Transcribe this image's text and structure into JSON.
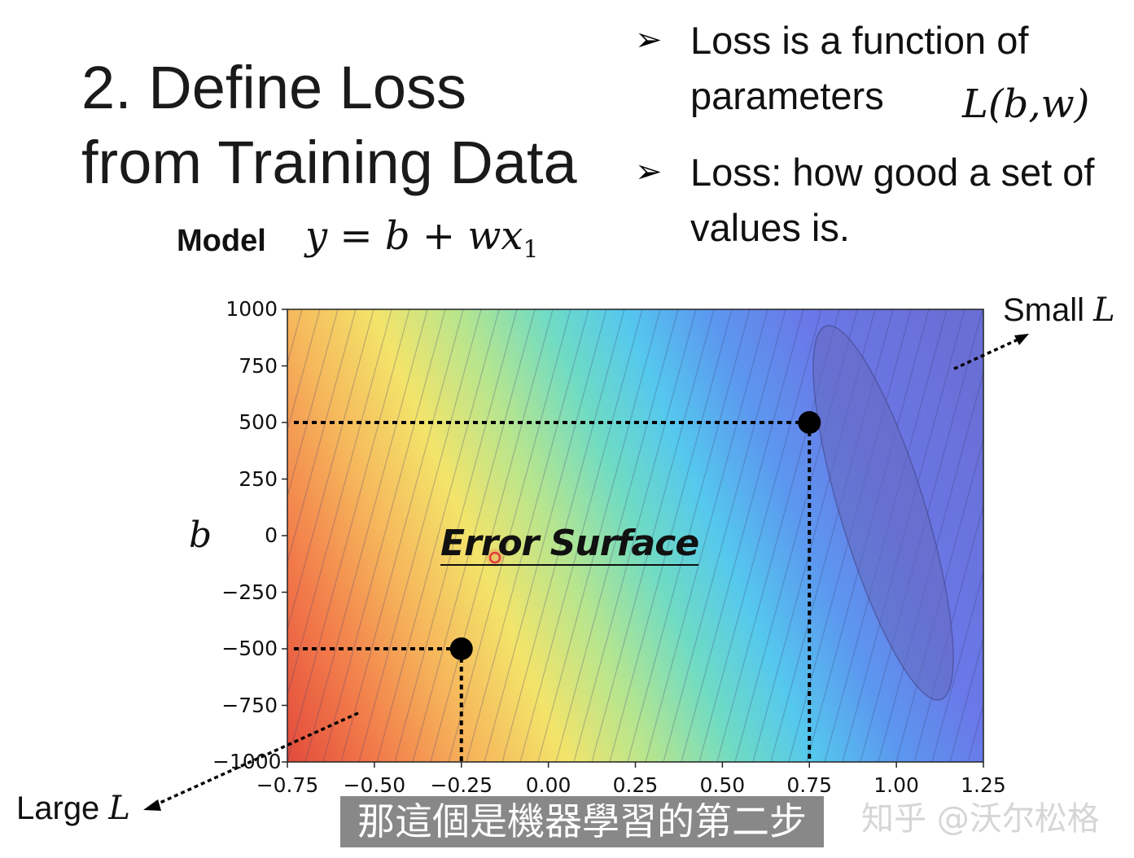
{
  "title": {
    "line1": "2. Define Loss",
    "line2": "from Training Data"
  },
  "bullets": [
    {
      "marker": "➢",
      "line1": "Loss is a function of",
      "line2": "parameters"
    },
    {
      "marker": "➢",
      "line1": "Loss: how good a set of",
      "line2": "values is."
    }
  ],
  "loss_notation": "L(b,w)",
  "model": {
    "label": "Model",
    "equation": "y = b + wx",
    "subscript": "1"
  },
  "plot": {
    "y_label": "b",
    "y_ticks": [
      "1000",
      "750",
      "500",
      "250",
      "0",
      "−250",
      "−500",
      "−750",
      "−1000"
    ],
    "x_ticks": [
      "−0.75",
      "−0.50",
      "−0.25",
      "0.00",
      "0.25",
      "0.50",
      "0.75",
      "1.00",
      "1.25"
    ],
    "annotation": "Error Surface",
    "small_label": "Small ",
    "large_label": "Large ",
    "L_symbol": "L"
  },
  "chart_data": {
    "type": "heatmap",
    "x_range": [
      -0.75,
      1.25
    ],
    "y_range": [
      -1000,
      1000
    ],
    "x_ticks": [
      -0.75,
      -0.5,
      -0.25,
      0.0,
      0.25,
      0.5,
      0.75,
      1.0,
      1.25
    ],
    "y_ticks": [
      1000,
      750,
      500,
      250,
      0,
      -250,
      -500,
      -750,
      -1000
    ],
    "ylabel": "b",
    "colormap": "jet (red = large loss, blue = small loss)",
    "highlighted_points": [
      {
        "w": 0.75,
        "b": 500
      },
      {
        "w": -0.25,
        "b": -500
      }
    ]
  },
  "colors": {
    "point": "#000000",
    "subtitle_bg": "#6e6e6e"
  },
  "subtitle": "那這個是機器學習的第二步",
  "watermark": "知乎 @沃尔松格"
}
